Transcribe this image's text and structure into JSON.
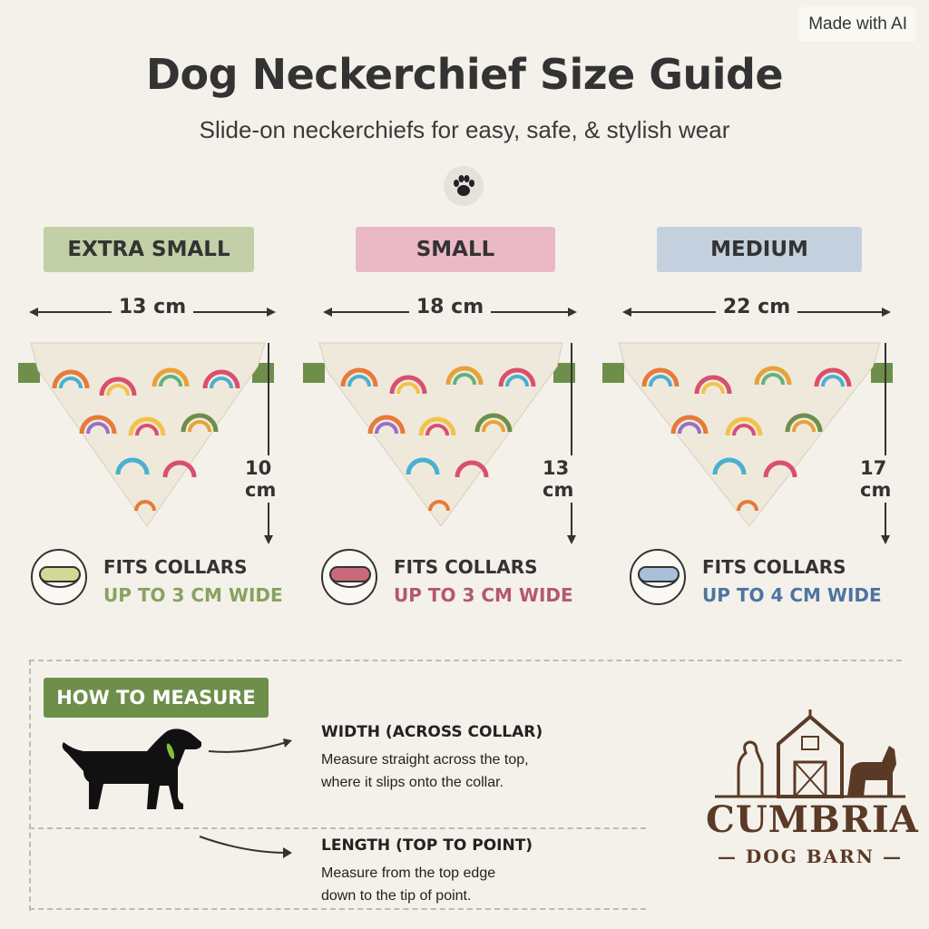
{
  "badge": "Made with AI",
  "header": {
    "title": "Dog Neckerchief Size Guide",
    "subtitle": "Slide-on neckerchiefs for easy, safe, & stylish wear",
    "icon": "paw-icon"
  },
  "sizes": [
    {
      "label": "EXTRA SMALL",
      "width": "13 cm",
      "length": "10 cm",
      "fits_line1": "FITS COLLARS",
      "fits_line2": "UP TO 3 CM WIDE",
      "accent": "#88a260",
      "tag_color": "#c3cfa6"
    },
    {
      "label": "SMALL",
      "width": "18 cm",
      "length": "13 cm",
      "fits_line1": "FITS COLLARS",
      "fits_line2": "UP TO 3 CM WIDE",
      "accent": "#b4596d",
      "tag_color": "#ebb9c6"
    },
    {
      "label": "MEDIUM",
      "width": "22 cm",
      "length": "17 cm",
      "fits_line1": "FITS COLLARS",
      "fits_line2": "UP TO 4 CM WIDE",
      "accent": "#4f74a3",
      "tag_color": "#c4d0dd"
    }
  ],
  "measure": {
    "tag": "HOW TO MEASURE",
    "steps": [
      {
        "title": "WIDTH (ACROSS COLLAR)",
        "line1": "Measure straight across the top,",
        "line2": "where it slips onto the collar."
      },
      {
        "title": "LENGTH (TOP TO POINT)",
        "line1": "Measure from the top edge",
        "line2": "down to the tip of point."
      }
    ]
  },
  "brand": {
    "name": "CUMBRIA",
    "tagline": "— DOG BARN —"
  }
}
